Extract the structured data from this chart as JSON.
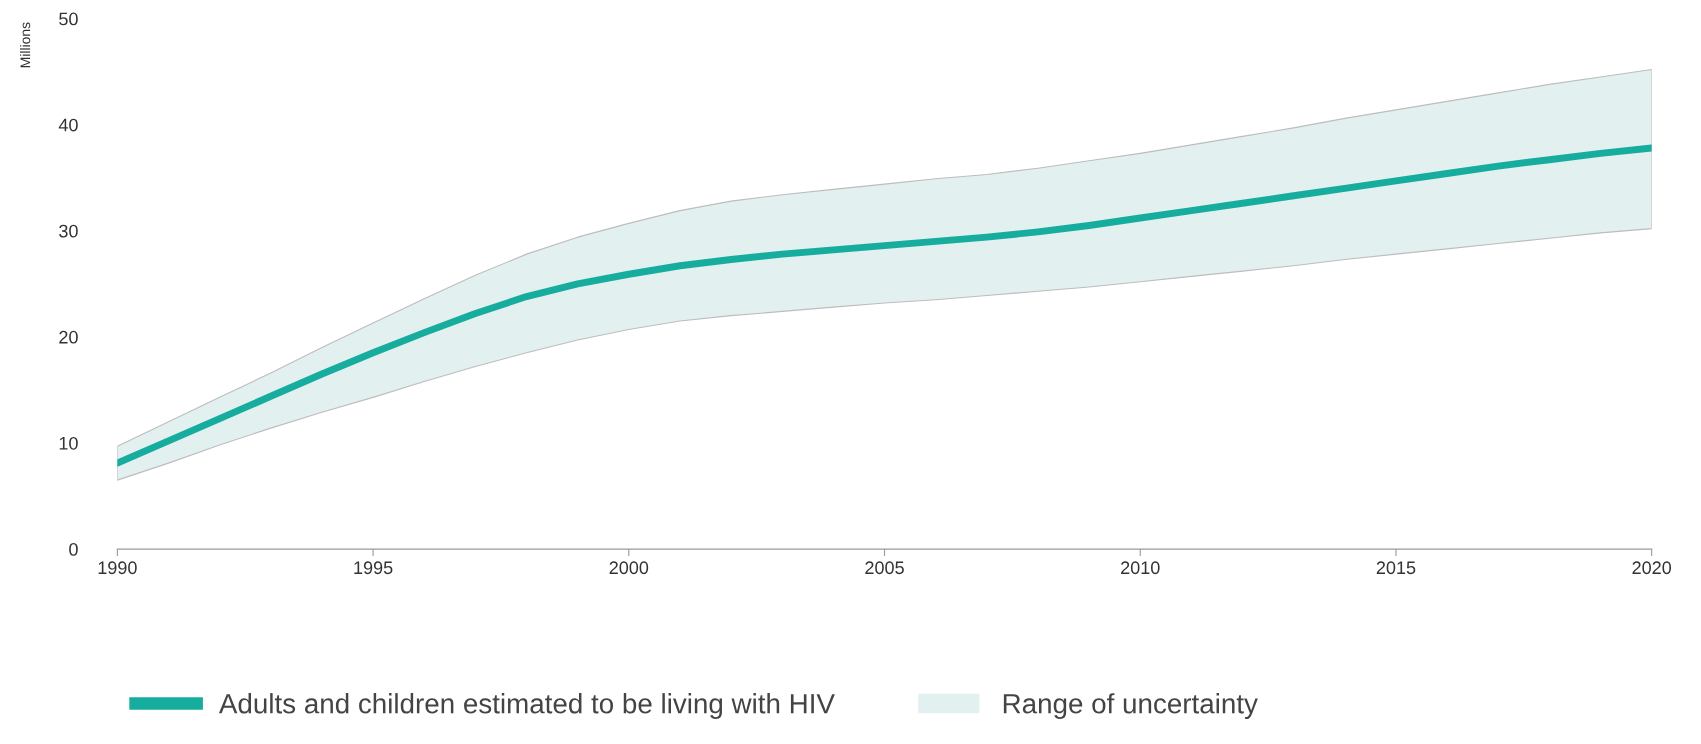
{
  "chart_data": {
    "type": "line",
    "ylabel": "Millions",
    "xlim": [
      1990,
      2020
    ],
    "xticks": [
      1990,
      1995,
      2000,
      2005,
      2010,
      2015,
      2020
    ],
    "ylim": [
      0,
      50
    ],
    "yticks": [
      0,
      10,
      20,
      30,
      40,
      50
    ],
    "grid": false,
    "legend": "bottom",
    "annotations": [
      "Range of uncertainty"
    ],
    "x": [
      1990,
      1991,
      1992,
      1993,
      1994,
      1995,
      1996,
      1997,
      1998,
      1999,
      2000,
      2001,
      2002,
      2003,
      2004,
      2005,
      2006,
      2007,
      2008,
      2009,
      2010,
      2011,
      2012,
      2013,
      2014,
      2015,
      2016,
      2017,
      2018,
      2019,
      2020
    ],
    "series": [
      {
        "name": "Adults and children estimated to be living with HIV",
        "color": "#17ad9e",
        "values": [
          8.1,
          10.2,
          12.3,
          14.4,
          16.5,
          18.5,
          20.4,
          22.2,
          23.8,
          25.0,
          25.9,
          26.7,
          27.3,
          27.8,
          28.2,
          28.6,
          29.0,
          29.4,
          29.9,
          30.5,
          31.2,
          31.9,
          32.6,
          33.3,
          34.0,
          34.7,
          35.4,
          36.1,
          36.7,
          37.3,
          37.8
        ],
        "upper": [
          9.7,
          12.0,
          14.3,
          16.6,
          19.0,
          21.3,
          23.6,
          25.8,
          27.8,
          29.4,
          30.7,
          31.9,
          32.8,
          33.4,
          33.9,
          34.4,
          34.9,
          35.3,
          35.9,
          36.6,
          37.3,
          38.1,
          38.9,
          39.7,
          40.6,
          41.4,
          42.2,
          43.0,
          43.8,
          44.5,
          45.2
        ],
        "lower": [
          6.5,
          8.1,
          9.8,
          11.4,
          12.9,
          14.3,
          15.8,
          17.2,
          18.5,
          19.7,
          20.7,
          21.5,
          22.0,
          22.4,
          22.8,
          23.2,
          23.5,
          23.9,
          24.3,
          24.7,
          25.2,
          25.7,
          26.2,
          26.7,
          27.3,
          27.8,
          28.3,
          28.8,
          29.3,
          29.8,
          30.2
        ]
      }
    ]
  }
}
